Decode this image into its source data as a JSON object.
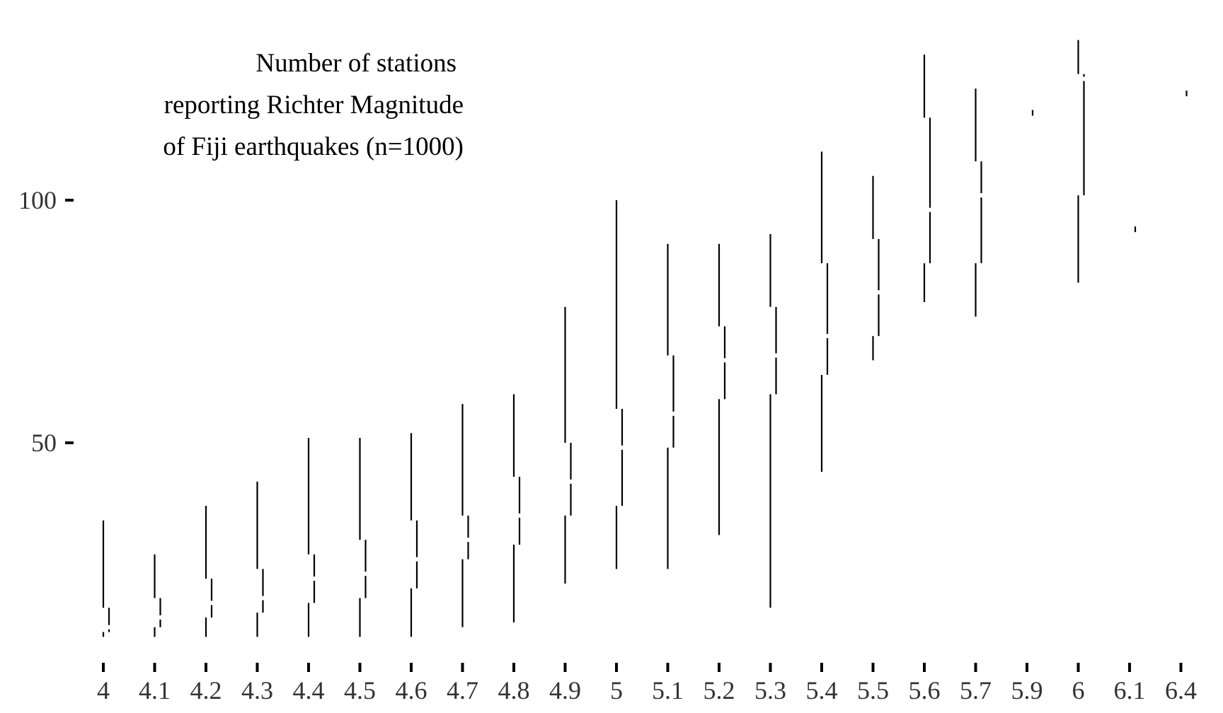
{
  "chart_data": {
    "type": "tufte-boxplot",
    "title_lines": [
      "Number of stations",
      "reporting Richter Magnitude",
      "of Fiji earthquakes (n=1000)"
    ],
    "categories": [
      "4",
      "4.1",
      "4.2",
      "4.3",
      "4.4",
      "4.5",
      "4.6",
      "4.7",
      "4.8",
      "4.9",
      "5",
      "5.1",
      "5.2",
      "5.3",
      "5.4",
      "5.5",
      "5.6",
      "5.7",
      "5.9",
      "6",
      "6.1",
      "6.4"
    ],
    "y_ticks": [
      50,
      100
    ],
    "y_tick_labels": [
      "50",
      "100"
    ],
    "ylim": [
      3,
      137
    ],
    "grid": false,
    "legend": "none",
    "boxes": [
      {
        "category": "4",
        "min": 10,
        "q1": 11,
        "median": 12,
        "q3": 16,
        "max": 34
      },
      {
        "category": "4.1",
        "min": 10,
        "q1": 12,
        "median": 14,
        "q3": 18,
        "max": 27
      },
      {
        "category": "4.2",
        "min": 10,
        "q1": 14,
        "median": 17,
        "q3": 22,
        "max": 37
      },
      {
        "category": "4.3",
        "min": 10,
        "q1": 15,
        "median": 18,
        "q3": 24,
        "max": 42
      },
      {
        "category": "4.4",
        "min": 10,
        "q1": 17,
        "median": 22,
        "q3": 27,
        "max": 51
      },
      {
        "category": "4.5",
        "min": 10,
        "q1": 18,
        "median": 23,
        "q3": 30,
        "max": 51
      },
      {
        "category": "4.6",
        "min": 10,
        "q1": 20,
        "median": 26,
        "q3": 34,
        "max": 52
      },
      {
        "category": "4.7",
        "min": 12,
        "q1": 26,
        "median": 30,
        "q3": 35,
        "max": 58
      },
      {
        "category": "4.8",
        "min": 13,
        "q1": 29,
        "median": 35,
        "q3": 43,
        "max": 60
      },
      {
        "category": "4.9",
        "min": 21,
        "q1": 35,
        "median": 42,
        "q3": 50,
        "max": 78
      },
      {
        "category": "5",
        "min": 24,
        "q1": 37,
        "median": 49,
        "q3": 57,
        "max": 100
      },
      {
        "category": "5.1",
        "min": 24,
        "q1": 49,
        "median": 56,
        "q3": 68,
        "max": 91
      },
      {
        "category": "5.2",
        "min": 31,
        "q1": 59,
        "median": 67,
        "q3": 74,
        "max": 91
      },
      {
        "category": "5.3",
        "min": 16,
        "q1": 60,
        "median": 68,
        "q3": 78,
        "max": 93
      },
      {
        "category": "5.4",
        "min": 44,
        "q1": 64,
        "median": 72,
        "q3": 87,
        "max": 110
      },
      {
        "category": "5.5",
        "min": 67,
        "q1": 72,
        "median": 81,
        "q3": 92,
        "max": 105
      },
      {
        "category": "5.6",
        "min": 79,
        "q1": 87,
        "median": 98,
        "q3": 117,
        "max": 130
      },
      {
        "category": "5.7",
        "min": 76,
        "q1": 87,
        "median": 101,
        "q3": 108,
        "max": 123
      },
      {
        "category": "5.9",
        "min": 118,
        "q1": 118,
        "median": 118,
        "q3": 118,
        "max": 118
      },
      {
        "category": "6",
        "min": 83,
        "q1": 101,
        "median": 125,
        "q3": 126,
        "max": 133
      },
      {
        "category": "6.1",
        "min": 94,
        "q1": 94,
        "median": 94,
        "q3": 94,
        "max": 94
      },
      {
        "category": "6.4",
        "min": 122,
        "q1": 122,
        "median": 122,
        "q3": 122,
        "max": 122
      }
    ]
  }
}
